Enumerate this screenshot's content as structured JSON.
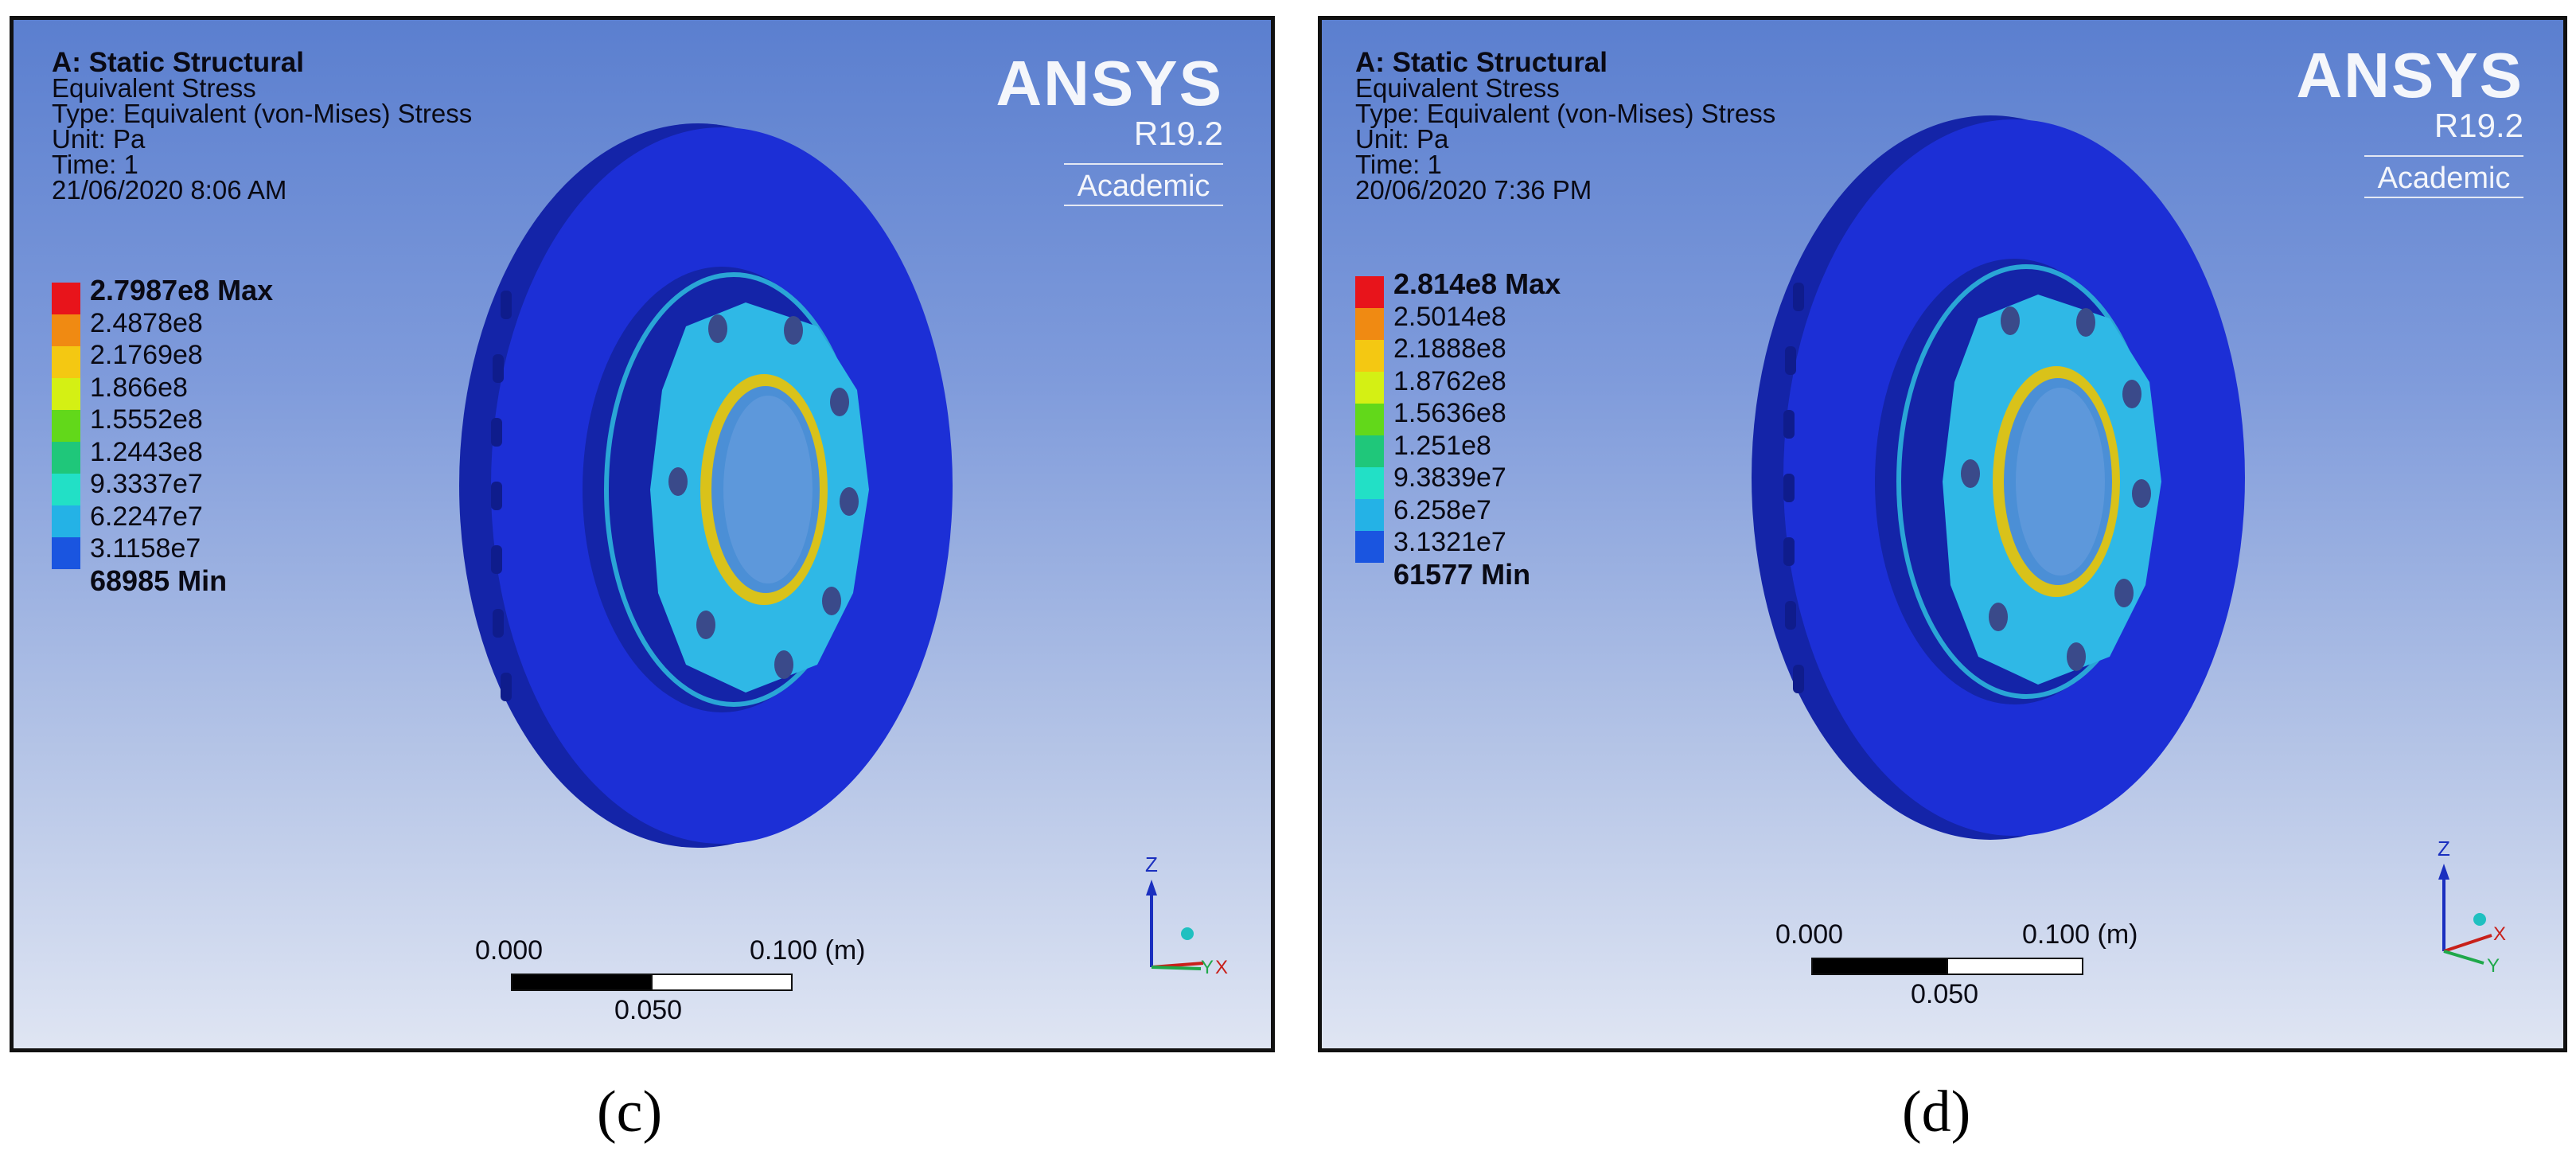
{
  "panels": [
    {
      "id": "c",
      "analysis_title": "A: Static Structural",
      "result_name": "Equivalent Stress",
      "type_line": "Type: Equivalent (von-Mises) Stress",
      "unit_line": "Unit: Pa",
      "time_line": "Time: 1",
      "timestamp": "21/06/2020 8:06 AM",
      "legend": [
        "2.7987e8 Max",
        "2.4878e8",
        "2.1769e8",
        "1.866e8",
        "1.5552e8",
        "1.2443e8",
        "9.3337e7",
        "6.2247e7",
        "3.1158e7",
        "68985 Min"
      ],
      "logo": {
        "brand": "ANSYS",
        "version": "R19.2",
        "edition": "Academic"
      },
      "scale": {
        "start": "0.000",
        "end": "0.100 (m)",
        "mid": "0.050"
      },
      "axes": {
        "z": "Z",
        "y": "Y",
        "x": "X"
      },
      "caption": "(c)"
    },
    {
      "id": "d",
      "analysis_title": "A: Static Structural",
      "result_name": "Equivalent Stress",
      "type_line": "Type: Equivalent (von-Mises) Stress",
      "unit_line": "Unit: Pa",
      "time_line": "Time: 1",
      "timestamp": "20/06/2020 7:36 PM",
      "legend": [
        "2.814e8 Max",
        "2.5014e8",
        "2.1888e8",
        "1.8762e8",
        "1.5636e8",
        "1.251e8",
        "9.3839e7",
        "6.258e7",
        "3.1321e7",
        "61577 Min"
      ],
      "logo": {
        "brand": "ANSYS",
        "version": "R19.2",
        "edition": "Academic"
      },
      "scale": {
        "start": "0.000",
        "end": "0.100 (m)",
        "mid": "0.050"
      },
      "axes": {
        "z": "Z",
        "y": "Y",
        "x": "X"
      },
      "caption": "(d)"
    }
  ],
  "legend_colors": [
    "#e8141b",
    "#f08a12",
    "#f4c812",
    "#d4f014",
    "#62d81a",
    "#1fc77a",
    "#22e0c6",
    "#24b2e6",
    "#1a55e0"
  ],
  "model_colors": {
    "disc": "#1c2fd6",
    "disc_edge": "#1424a8",
    "hub": "#2fb8e6",
    "ring": "#d9c21a"
  }
}
